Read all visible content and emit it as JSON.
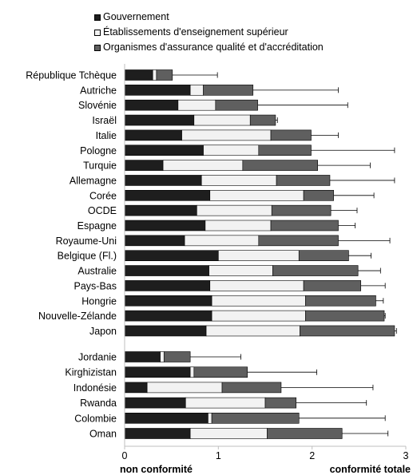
{
  "colors": {
    "gouvernement": "#1e1e1e",
    "etablissements": "#f2f2f2",
    "organismes": "#5f5f5f",
    "border": "#000000",
    "axis": "#bfbfbf"
  },
  "chart_data": {
    "type": "bar",
    "orientation": "horizontal",
    "stacked": true,
    "title": "",
    "xlabel": "",
    "ylabel": "",
    "xlim": [
      0,
      3
    ],
    "x_ticks": [
      "0",
      "1",
      "2",
      "3"
    ],
    "x_end_labels": {
      "left": "non conformité",
      "right": "conformité totale"
    },
    "legend_position": "top",
    "grid": false,
    "categories": [
      "République Tchèque",
      "Autriche",
      "Slovénie",
      "Israël",
      "Italie",
      "Pologne",
      "Turquie",
      "Allemagne",
      "Corée",
      "OCDE",
      "Espagne",
      "Royaume-Uni",
      "Belgique (Fl.)",
      "Australie",
      "Pays-Bas",
      "Hongrie",
      "Nouvelle-Zélande",
      "Japon",
      "Jordanie",
      "Kirghizistan",
      "Indonésie",
      "Rwanda",
      "Colombie",
      "Oman"
    ],
    "group_break_after": "Japon",
    "series": [
      {
        "name": "Gouvernement",
        "values": [
          0.3,
          0.7,
          0.57,
          0.74,
          0.61,
          0.84,
          0.41,
          0.82,
          0.91,
          0.77,
          0.86,
          0.64,
          1.0,
          0.9,
          0.91,
          0.93,
          0.93,
          0.87,
          0.38,
          0.7,
          0.24,
          0.65,
          0.89,
          0.7
        ]
      },
      {
        "name": "Établissements d'enseignement supérieur",
        "values": [
          0.04,
          0.14,
          0.4,
          0.6,
          0.95,
          0.59,
          0.85,
          0.8,
          1.0,
          0.8,
          0.7,
          0.79,
          0.86,
          0.68,
          1.0,
          1.0,
          1.0,
          1.0,
          0.04,
          0.04,
          0.8,
          0.85,
          0.04,
          0.82
        ]
      },
      {
        "name": "Organismes d'assurance qualité et d'accréditation",
        "values": [
          0.17,
          0.53,
          0.45,
          0.27,
          0.43,
          0.56,
          0.8,
          0.57,
          0.32,
          0.63,
          0.72,
          0.85,
          0.53,
          0.91,
          0.61,
          0.75,
          0.84,
          1.01,
          0.28,
          0.57,
          0.63,
          0.33,
          0.93,
          0.8
        ]
      }
    ],
    "error_bar_upper": [
      0.99,
      2.28,
      2.38,
      1.63,
      2.28,
      2.88,
      2.62,
      2.88,
      2.66,
      2.48,
      2.46,
      2.83,
      2.63,
      2.73,
      2.78,
      2.76,
      2.78,
      2.9,
      1.24,
      2.05,
      2.65,
      2.58,
      2.78,
      2.81
    ]
  }
}
